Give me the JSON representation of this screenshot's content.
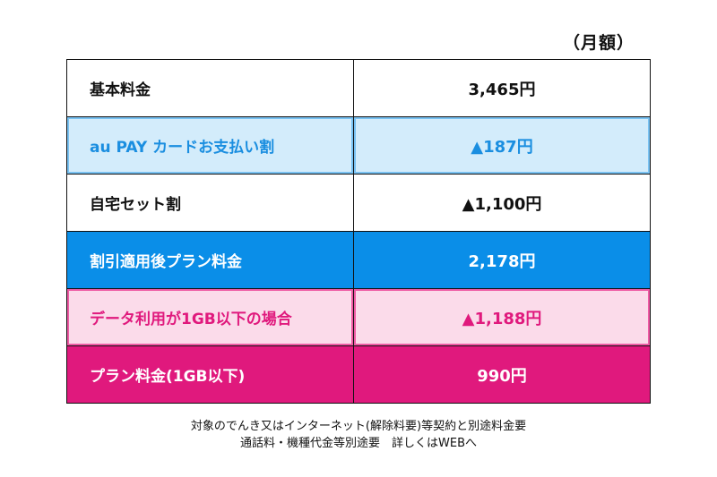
{
  "unit_label": "（月額）",
  "rows": [
    {
      "label": "基本料金",
      "value": "3,465円",
      "style": "white"
    },
    {
      "label": "au PAY カードお支払い割",
      "value": "▲187円",
      "style": "lightblue"
    },
    {
      "label": "自宅セット割",
      "value": "▲1,100円",
      "style": "white"
    },
    {
      "label": "割引適用後プラン料金",
      "value": "2,178円",
      "style": "blue"
    },
    {
      "label": "データ利用が1GB以下の場合",
      "value": "▲1,188円",
      "style": "lightpink"
    },
    {
      "label": "プラン料金(1GB以下)",
      "value": "990円",
      "style": "magenta"
    }
  ],
  "notes": {
    "line1": "対象のでんき又はインターネット(解除料要)等契約と別途料金要",
    "line2": "通話料・機種代金等別途要　詳しくはWEBへ"
  },
  "colors": {
    "lightblue_bg": "#d3ecfb",
    "lightblue_text": "#1a8ee0",
    "blue_bg": "#0a8ee8",
    "lightpink_bg": "#fbdbea",
    "lightpink_text": "#e0197d",
    "magenta_bg": "#e0197d"
  }
}
